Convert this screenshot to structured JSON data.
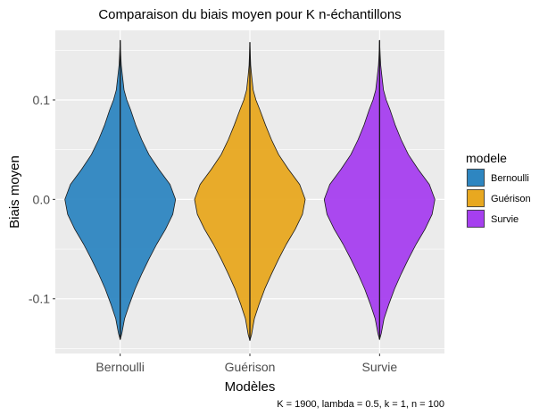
{
  "chart_data": {
    "type": "violin",
    "title": "Comparaison du biais moyen pour K n-échantillons",
    "xlabel": "Modèles",
    "ylabel": "Biais moyen",
    "categories": [
      "Bernoulli",
      "Guérison",
      "Survie"
    ],
    "y_ticks": [
      -0.1,
      0.0,
      0.1
    ],
    "y_tick_labels": [
      "-0.1",
      "0.0",
      "0.1"
    ],
    "ylim": [
      -0.155,
      0.17
    ],
    "grid": true,
    "legend": {
      "title": "modele",
      "position": "right",
      "entries": [
        "Bernoulli",
        "Guérison",
        "Survie"
      ]
    },
    "caption": "K = 1900, lambda = 0.5, k = 1, n = 100",
    "series": [
      {
        "name": "Bernoulli",
        "color": "#2E86C1",
        "min": -0.141,
        "max": 0.16,
        "profile": [
          [
            -0.141,
            0.0
          ],
          [
            -0.135,
            0.03
          ],
          [
            -0.12,
            0.08
          ],
          [
            -0.105,
            0.17
          ],
          [
            -0.09,
            0.27
          ],
          [
            -0.075,
            0.39
          ],
          [
            -0.06,
            0.52
          ],
          [
            -0.045,
            0.66
          ],
          [
            -0.03,
            0.82
          ],
          [
            -0.015,
            0.95
          ],
          [
            0.0,
            1.0
          ],
          [
            0.015,
            0.9
          ],
          [
            0.03,
            0.7
          ],
          [
            0.045,
            0.52
          ],
          [
            0.06,
            0.39
          ],
          [
            0.075,
            0.28
          ],
          [
            0.09,
            0.19
          ],
          [
            0.1,
            0.12
          ],
          [
            0.11,
            0.07
          ],
          [
            0.125,
            0.04
          ],
          [
            0.135,
            0.02
          ],
          [
            0.145,
            0.01
          ],
          [
            0.16,
            0.0
          ]
        ]
      },
      {
        "name": "Guérison",
        "color": "#E8A820",
        "min": -0.142,
        "max": 0.158,
        "profile": [
          [
            -0.142,
            0.0
          ],
          [
            -0.136,
            0.03
          ],
          [
            -0.12,
            0.08
          ],
          [
            -0.105,
            0.17
          ],
          [
            -0.09,
            0.27
          ],
          [
            -0.075,
            0.39
          ],
          [
            -0.06,
            0.52
          ],
          [
            -0.045,
            0.66
          ],
          [
            -0.03,
            0.82
          ],
          [
            -0.015,
            0.95
          ],
          [
            0.0,
            1.0
          ],
          [
            0.015,
            0.9
          ],
          [
            0.03,
            0.7
          ],
          [
            0.045,
            0.52
          ],
          [
            0.06,
            0.39
          ],
          [
            0.075,
            0.28
          ],
          [
            0.09,
            0.18
          ],
          [
            0.1,
            0.11
          ],
          [
            0.11,
            0.06
          ],
          [
            0.125,
            0.03
          ],
          [
            0.135,
            0.015
          ],
          [
            0.145,
            0.008
          ],
          [
            0.158,
            0.0
          ]
        ]
      },
      {
        "name": "Survie",
        "color": "#A63FEF",
        "min": -0.141,
        "max": 0.16,
        "profile": [
          [
            -0.141,
            0.0
          ],
          [
            -0.135,
            0.03
          ],
          [
            -0.12,
            0.08
          ],
          [
            -0.105,
            0.17
          ],
          [
            -0.09,
            0.27
          ],
          [
            -0.075,
            0.39
          ],
          [
            -0.06,
            0.52
          ],
          [
            -0.045,
            0.66
          ],
          [
            -0.03,
            0.82
          ],
          [
            -0.015,
            0.95
          ],
          [
            0.0,
            1.0
          ],
          [
            0.015,
            0.9
          ],
          [
            0.03,
            0.7
          ],
          [
            0.045,
            0.52
          ],
          [
            0.06,
            0.39
          ],
          [
            0.075,
            0.28
          ],
          [
            0.09,
            0.19
          ],
          [
            0.1,
            0.12
          ],
          [
            0.11,
            0.07
          ],
          [
            0.125,
            0.04
          ],
          [
            0.135,
            0.02
          ],
          [
            0.145,
            0.01
          ],
          [
            0.16,
            0.0
          ]
        ]
      }
    ]
  }
}
